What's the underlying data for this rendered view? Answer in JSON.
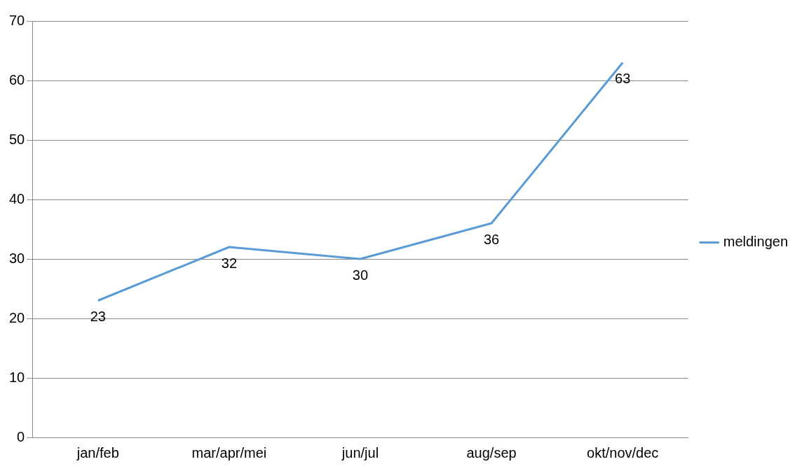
{
  "chart_data": {
    "type": "line",
    "categories": [
      "jan/feb",
      "mar/apr/mei",
      "jun/jul",
      "aug/sep",
      "okt/nov/dec"
    ],
    "series": [
      {
        "name": "meldingen",
        "color": "#5b9bd5",
        "values": [
          23,
          32,
          30,
          36,
          63
        ]
      }
    ],
    "ylim": [
      0,
      70
    ],
    "yticks": [
      0,
      10,
      20,
      30,
      40,
      50,
      60,
      70
    ],
    "grid": "y",
    "legend": "right",
    "data_labels": true,
    "marker": "none",
    "line_style": "solid"
  }
}
